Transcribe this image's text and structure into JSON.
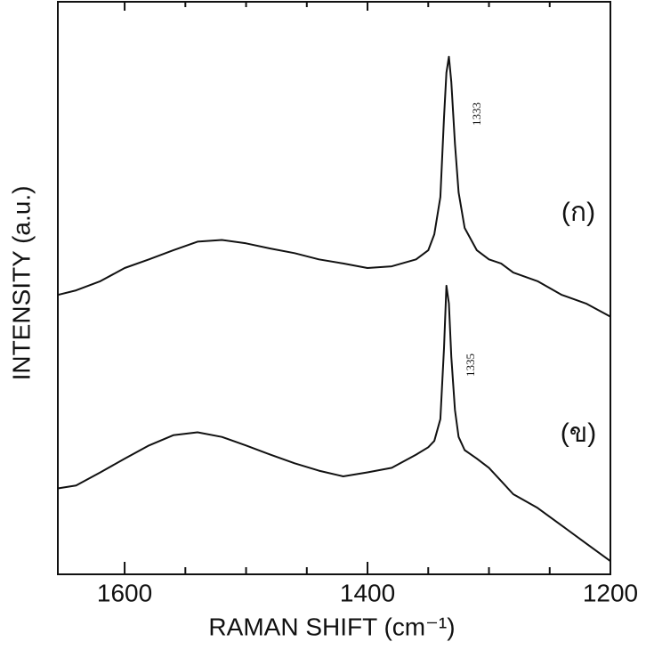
{
  "chart_data": {
    "type": "line",
    "x_label": "RAMAN SHIFT (cm⁻¹)",
    "y_label": "INTENSITY (a.u.)",
    "x": [
      1655,
      1640,
      1620,
      1600,
      1580,
      1560,
      1540,
      1520,
      1500,
      1480,
      1460,
      1440,
      1420,
      1400,
      1380,
      1360,
      1350,
      1345,
      1340,
      1337,
      1335,
      1333,
      1331,
      1328,
      1325,
      1320,
      1310,
      1300,
      1290,
      1280,
      1260,
      1240,
      1220,
      1200
    ],
    "series": [
      {
        "name": "(ก)",
        "color": "#111111",
        "values": [
          48.8,
          49.6,
          51.2,
          53.5,
          55.0,
          56.6,
          58.1,
          58.4,
          57.8,
          56.9,
          56.1,
          55.0,
          54.3,
          53.5,
          53.8,
          55.0,
          56.6,
          59.4,
          65.9,
          79.8,
          87.6,
          90.4,
          86.0,
          75.2,
          66.7,
          60.5,
          56.6,
          55.0,
          54.3,
          52.7,
          51.2,
          48.8,
          47.3,
          45.0
        ]
      },
      {
        "name": "(ข)",
        "color": "#111111",
        "values": [
          15.0,
          15.5,
          17.8,
          20.2,
          22.5,
          24.3,
          24.8,
          24.0,
          22.5,
          20.9,
          19.4,
          18.1,
          17.1,
          17.8,
          18.6,
          20.9,
          22.2,
          23.3,
          27.1,
          39.5,
          50.4,
          47.3,
          38.0,
          28.7,
          24.0,
          21.7,
          20.2,
          18.6,
          16.3,
          14.0,
          11.6,
          8.5,
          5.4,
          2.3
        ]
      }
    ],
    "annotations": [
      "1333",
      "1335"
    ],
    "xlim": [
      1655,
      1200
    ],
    "xticks": [
      1600,
      1400,
      1200
    ],
    "xminorticks": [
      1550,
      1500,
      1450,
      1350,
      1300,
      1250
    ],
    "ylim": [
      0,
      100
    ]
  }
}
